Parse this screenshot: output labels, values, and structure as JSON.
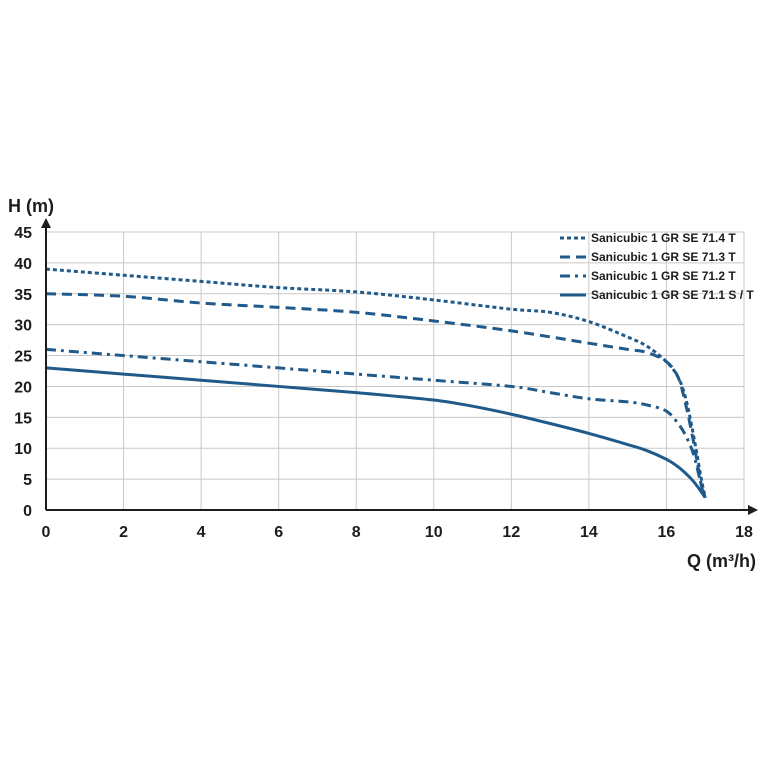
{
  "chart_data": {
    "type": "line",
    "xlabel": "Q (m³/h)",
    "ylabel": "H (m)",
    "xlim": [
      0,
      18
    ],
    "ylim": [
      0,
      45
    ],
    "xticks": [
      0,
      2,
      4,
      6,
      8,
      10,
      12,
      14,
      16,
      18
    ],
    "yticks": [
      0,
      5,
      10,
      15,
      20,
      25,
      30,
      35,
      40,
      45
    ],
    "xtick_labels": [
      "0",
      "2",
      "4",
      "6",
      "8",
      "10",
      "12",
      "14",
      "16",
      "18"
    ],
    "ytick_labels": [
      "0",
      "5",
      "10",
      "15",
      "20",
      "25",
      "30",
      "35",
      "40",
      "45"
    ],
    "grid": true,
    "legend_position": "top-right",
    "series": [
      {
        "name": "Sanicubic 1 GR SE 71.4 T",
        "style": "dotted",
        "color": "#205a8a",
        "x": [
          0,
          2,
          4,
          6,
          8,
          10,
          12,
          13,
          14,
          15,
          15.5,
          16,
          16.3,
          16.5,
          16.7,
          16.9,
          17.0
        ],
        "y": [
          39,
          38,
          37,
          36,
          35.3,
          34,
          32.5,
          32,
          30.5,
          28,
          26.5,
          24,
          21.5,
          18,
          12,
          5,
          2
        ]
      },
      {
        "name": "Sanicubic 1 GR SE 71.3 T",
        "style": "dashed",
        "color": "#205a8a",
        "x": [
          0,
          2,
          4,
          6,
          8,
          10,
          12,
          14,
          15,
          15.5,
          16,
          16.3,
          16.5,
          16.7,
          16.9,
          17.0
        ],
        "y": [
          35,
          34.6,
          33.5,
          32.8,
          32,
          30.6,
          29,
          27,
          26,
          25.5,
          24,
          21.5,
          17,
          11,
          4,
          2
        ]
      },
      {
        "name": "Sanicubic 1 GR SE 71.2 T",
        "style": "dashdot",
        "color": "#205a8a",
        "x": [
          0,
          2,
          4,
          6,
          8,
          10,
          12,
          13,
          14,
          15,
          15.5,
          16,
          16.3,
          16.5,
          16.7,
          16.9,
          17.0
        ],
        "y": [
          26,
          25,
          24,
          23,
          22,
          21,
          20,
          19,
          18,
          17.5,
          17,
          16,
          14,
          12,
          9,
          4,
          2
        ]
      },
      {
        "name": "Sanicubic 1 GR SE 71.1 S / T",
        "style": "solid",
        "color": "#205a8a",
        "x": [
          0,
          2,
          4,
          6,
          8,
          10,
          11,
          12,
          13,
          14,
          15,
          15.5,
          16,
          16.3,
          16.6,
          16.8,
          17.0
        ],
        "y": [
          23,
          22,
          21,
          20,
          19,
          17.8,
          16.8,
          15.5,
          14,
          12.4,
          10.6,
          9.6,
          8.2,
          7,
          5.3,
          3.8,
          2
        ]
      }
    ]
  }
}
